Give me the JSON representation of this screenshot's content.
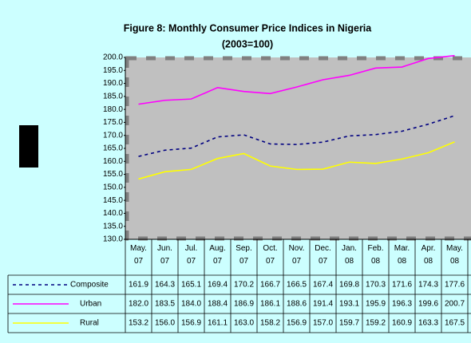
{
  "chart_data": {
    "type": "line",
    "title": "Figure 8: Monthly Consumer Price Indices in Nigeria",
    "subtitle": "(2003=100)",
    "categories": [
      "May. 07",
      "Jun. 07",
      "Jul. 07",
      "Aug. 07",
      "Sep. 07",
      "Oct. 07",
      "Nov. 07",
      "Dec. 07",
      "Jan. 08",
      "Feb. 08",
      "Mar. 08",
      "Apr. 08",
      "May. 08"
    ],
    "series": [
      {
        "name": "Composite",
        "color": "#000080",
        "dash": true,
        "values": [
          161.9,
          164.3,
          165.1,
          169.4,
          170.2,
          166.7,
          166.5,
          167.4,
          169.8,
          170.3,
          171.6,
          174.3,
          177.6
        ],
        "value_labels": [
          "161.9",
          "164.3",
          "165.1",
          "169.4",
          "170.2",
          "166.7",
          "166.5",
          "167.4",
          "169.8",
          "170.3",
          "171.6",
          "174.3",
          "177.6"
        ]
      },
      {
        "name": "Urban",
        "color": "#ff00ff",
        "dash": false,
        "values": [
          182.0,
          183.5,
          184.0,
          188.4,
          186.9,
          186.1,
          188.6,
          191.4,
          193.1,
          195.9,
          196.3,
          199.6,
          200.7
        ],
        "value_labels": [
          "182.0",
          "183.5",
          "184.0",
          "188.4",
          "186.9",
          "186.1",
          "188.6",
          "191.4",
          "193.1",
          "195.9",
          "196.3",
          "199.6",
          "200.7"
        ]
      },
      {
        "name": "Rural",
        "color": "#ffff00",
        "dash": false,
        "values": [
          153.2,
          156.0,
          156.9,
          161.1,
          163.0,
          158.2,
          156.9,
          157.0,
          159.7,
          159.2,
          160.9,
          163.3,
          167.5
        ],
        "value_labels": [
          "153.2",
          "156.0",
          "156.9",
          "161.1",
          "163.0",
          "158.2",
          "156.9",
          "157.0",
          "159.7",
          "159.2",
          "160.9",
          "163.3",
          "167.5"
        ]
      }
    ],
    "ylim": [
      130,
      200
    ],
    "yticks": [
      {
        "value": 130,
        "label": "130.0"
      },
      {
        "value": 135,
        "label": "135.0"
      },
      {
        "value": 140,
        "label": "140.0"
      },
      {
        "value": 145,
        "label": "145.0"
      },
      {
        "value": 150,
        "label": "150.0"
      },
      {
        "value": 155,
        "label": "155.0"
      },
      {
        "value": 160,
        "label": "160.0"
      },
      {
        "value": 165,
        "label": "165.0"
      },
      {
        "value": 170,
        "label": "170.0"
      },
      {
        "value": 175,
        "label": "175.0"
      },
      {
        "value": 180,
        "label": "180.0"
      },
      {
        "value": 185,
        "label": "185.0"
      },
      {
        "value": 190,
        "label": "190.0"
      },
      {
        "value": 195,
        "label": "195.0"
      },
      {
        "value": 200,
        "label": "200.0"
      }
    ],
    "grid": false
  }
}
